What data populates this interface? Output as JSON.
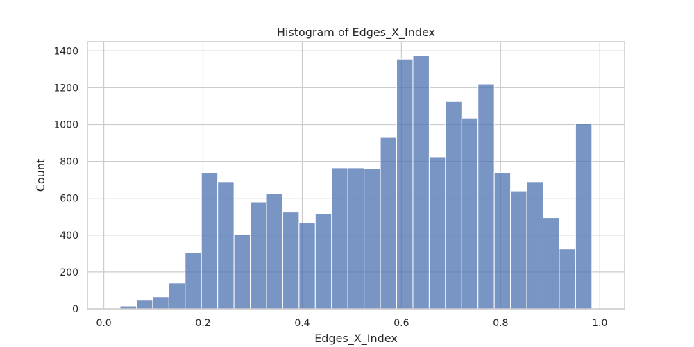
{
  "chart_data": {
    "type": "bar",
    "title": "Histogram of Edges_X_Index",
    "xlabel": "Edges_X_Index",
    "ylabel": "Count",
    "xlim": [
      -0.033,
      1.05
    ],
    "ylim": [
      0,
      1450
    ],
    "xticks": [
      0.0,
      0.2,
      0.4,
      0.6,
      0.8,
      1.0
    ],
    "xtick_labels": [
      "0.0",
      "0.2",
      "0.4",
      "0.6",
      "0.8",
      "1.0"
    ],
    "yticks": [
      0,
      200,
      400,
      600,
      800,
      1000,
      1200,
      1400
    ],
    "ytick_labels": [
      "0",
      "200",
      "400",
      "600",
      "800",
      "1000",
      "1200",
      "1400"
    ],
    "grid": true,
    "bin_start": 0.0,
    "bin_width": 0.0328,
    "values": [
      0,
      15,
      50,
      65,
      140,
      305,
      740,
      690,
      405,
      580,
      625,
      525,
      465,
      515,
      765,
      765,
      760,
      930,
      1355,
      1375,
      825,
      1125,
      1035,
      1220,
      740,
      640,
      690,
      495,
      325,
      1005
    ],
    "bar_color": "#4c72b0"
  }
}
